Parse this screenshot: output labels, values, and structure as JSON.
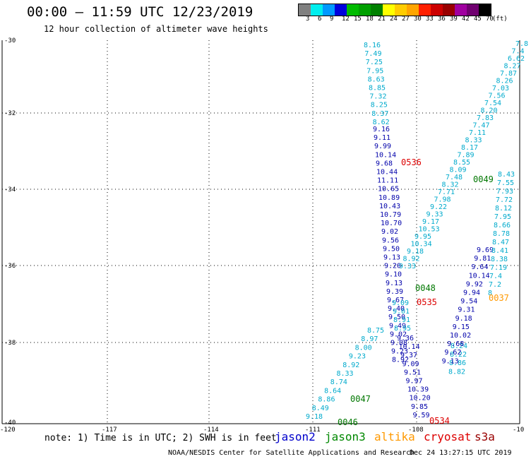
{
  "header": {
    "title": "00:00 – 11:59 UTC 12/23/2019",
    "subtitle": "12 hour collection of altimeter wave heights"
  },
  "color_scale": {
    "swatches": [
      "#808080",
      "#00eeee",
      "#0099ff",
      "#0000dd",
      "#00bb00",
      "#00a000",
      "#008000",
      "#ffff00",
      "#ffcc00",
      "#ffa500",
      "#ff2000",
      "#cc0000",
      "#990000",
      "#a000a0",
      "#700070",
      "#000000"
    ],
    "labels": [
      "3",
      "6",
      "9",
      "12",
      "15",
      "18",
      "21",
      "24",
      "27",
      "30",
      "33",
      "36",
      "39",
      "42",
      "45",
      "70",
      "(ft)"
    ]
  },
  "axes": {
    "lat_labels": [
      "-30",
      "-32",
      "-34",
      "-36",
      "-38",
      "-40"
    ],
    "lon_labels": [
      "-120",
      "-117",
      "-114",
      "-111",
      "-108",
      "-10"
    ]
  },
  "tracks": [
    {
      "id": "jason2-desc",
      "color": "#0000aa",
      "values": [
        "9.16",
        "9.11",
        "9.99",
        "10.14",
        "9.68",
        "10.44",
        "11.11",
        "10.65",
        "10.89",
        "10.43",
        "10.79",
        "10.70",
        "9.02",
        "9.56",
        "9.50",
        "9.13",
        "9.20",
        "9.10",
        "9.13",
        "9.39",
        "9.67",
        "9.40",
        "9.50",
        "9.49",
        "9.02",
        "9.08",
        "9.23",
        "8.92"
      ]
    },
    {
      "id": "jason2-upper-cyan",
      "color": "#00aacc",
      "values": [
        "8.16",
        "7.49",
        "7.25",
        "7.95",
        "8.63",
        "8.85",
        "7.32",
        "8.25",
        "8.37",
        "8.62"
      ]
    },
    {
      "id": "jason3-asc",
      "color": "#00aacc",
      "values": [
        "9.18",
        "8.49",
        "8.86",
        "8.64",
        "8.74",
        "8.33",
        "8.92",
        "9.23",
        "8.00",
        "8.97",
        "8.75"
      ]
    },
    {
      "id": "mid-track",
      "color": "#00aacc",
      "values": [
        "9.33",
        "8.92",
        "9.18",
        "10.34",
        "9.95",
        "10.53",
        "9.17",
        "9.33",
        "9.22",
        "7.98",
        "7.71",
        "8.32",
        "7.48",
        "8.09",
        "8.55",
        "7.89",
        "8.17",
        "8.33",
        "7.11",
        "7.47",
        "7.83",
        "8.20",
        "7.54",
        "7.56",
        "7.03",
        "8.26",
        "7.87",
        "8.27",
        "6.62",
        "7.4",
        "7.8"
      ]
    },
    {
      "id": "mid-track-lower",
      "color": "#00aacc",
      "values": [
        "9.09",
        "9.01",
        "8.91",
        "8.95"
      ]
    },
    {
      "id": "cryosat-desc",
      "color": "#0000aa",
      "values": [
        "9.36",
        "10.14",
        "9.37",
        "9.09",
        "9.51",
        "9.97",
        "10.39",
        "10.20",
        "9.85",
        "9.59"
      ]
    },
    {
      "id": "s3a-lower",
      "color": "#00aacc",
      "values": [
        "8.24",
        "8.22",
        "8.86",
        "8.82"
      ]
    },
    {
      "id": "s3a-lower-blue",
      "color": "#0000aa",
      "values": [
        "9.69",
        "9.81",
        "9.64",
        "10.14",
        "9.92",
        "9.94",
        "9.54",
        "9.31",
        "9.18",
        "9.15",
        "10.02",
        "9.68",
        "9.62",
        "9.13"
      ]
    },
    {
      "id": "right-track",
      "color": "#00aacc",
      "values": [
        "8.43",
        "7.55",
        "7.93",
        "7.72",
        "8.12",
        "7.95",
        "8.66",
        "8.78",
        "8.47",
        "8.41",
        "8.38",
        "7.19",
        "7.4",
        "7.2",
        "8"
      ]
    }
  ],
  "time_labels": [
    {
      "text": "0536",
      "color": "#dd0000"
    },
    {
      "text": "0049",
      "color": "#007700"
    },
    {
      "text": "0048",
      "color": "#007700"
    },
    {
      "text": "0535",
      "color": "#dd0000"
    },
    {
      "text": "0037",
      "color": "#ff9900"
    },
    {
      "text": "0047",
      "color": "#007700"
    },
    {
      "text": "0046",
      "color": "#007700"
    },
    {
      "text": "0534",
      "color": "#dd0000"
    }
  ],
  "footer": {
    "note": "note: 1) Time is in UTC; 2) SWH is in feet",
    "satellites": [
      {
        "name": "jason2",
        "color": "#0000cc"
      },
      {
        "name": "jason3",
        "color": "#008800"
      },
      {
        "name": "altika",
        "color": "#ff9900"
      },
      {
        "name": "cryosat",
        "color": "#dd0000"
      },
      {
        "name": "s3a",
        "color": "#990000"
      }
    ],
    "credit": "NOAA/NESDIS Center for Satellite Applications and Research",
    "timestamp": "Dec 24 13:27:15 UTC 2019"
  }
}
